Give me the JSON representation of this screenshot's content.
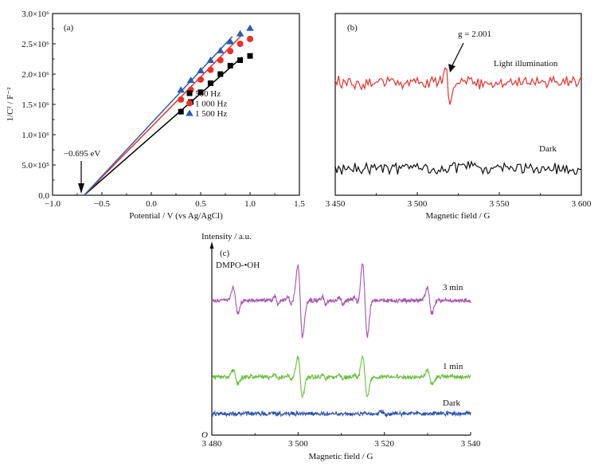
{
  "chart_data": [
    {
      "panel": "(a)",
      "type": "scatter",
      "title": "",
      "xlabel": "Potential / V (vs Ag/AgCl)",
      "ylabel": "1/C² / F⁻²",
      "xlim": [
        -1.0,
        1.5
      ],
      "ylim": [
        0,
        3000000
      ],
      "xticks": [
        -1.0,
        -0.5,
        0.0,
        0.5,
        1.0,
        1.5
      ],
      "xtick_labels": [
        "−1.0",
        "−0.5",
        "0.0",
        "0.5",
        "1.0",
        "1.5"
      ],
      "yticks": [
        0,
        500000,
        1000000,
        1500000,
        2000000,
        2500000,
        3000000
      ],
      "ytick_labels": [
        "0.0",
        "5.0×10⁵",
        "1.0×10⁶",
        "1.5×10⁶",
        "2.0×10⁶",
        "2.5×10⁶",
        "3.0×10⁶"
      ],
      "legend_position": "center-right",
      "x": [
        0.3,
        0.4,
        0.5,
        0.6,
        0.7,
        0.8,
        0.9,
        1.0
      ],
      "series": [
        {
          "name": "500 Hz",
          "marker": "square",
          "color": "#000000",
          "values": [
            1380000,
            1540000,
            1700000,
            1850000,
            2000000,
            2140000,
            2230000,
            2300000
          ],
          "fit": {
            "x0": -0.68,
            "x1": 0.92,
            "y1": 2280000
          }
        },
        {
          "name": "1 000 Hz",
          "marker": "circle",
          "color": "#e8312a",
          "values": [
            1580000,
            1740000,
            1910000,
            2070000,
            2230000,
            2380000,
            2500000,
            2580000
          ],
          "fit": {
            "x0": -0.68,
            "x1": 0.92,
            "y1": 2650000
          }
        },
        {
          "name": "1 500 Hz",
          "marker": "triangle",
          "color": "#2a5db0",
          "values": [
            1740000,
            1900000,
            2060000,
            2230000,
            2390000,
            2540000,
            2670000,
            2760000
          ],
          "fit": {
            "x0": -0.68,
            "x1": 0.82,
            "y1": 2620000
          }
        }
      ],
      "annotation": {
        "text": "−0.695 eV",
        "x": -0.695
      }
    },
    {
      "panel": "(b)",
      "type": "line",
      "xlabel": "Magnetic field / G",
      "ylabel": "",
      "xlim": [
        3450,
        3600
      ],
      "xticks": [
        3450,
        3500,
        3550,
        3600
      ],
      "xtick_labels": [
        "3 450",
        "3 500",
        "3 550",
        "3 600"
      ],
      "series": [
        {
          "name": "Light illumination",
          "color": "#e8312a",
          "baseline": 0.62,
          "features": [
            {
              "center": 3518.5,
              "g": 2.001,
              "type": "derivative"
            }
          ]
        },
        {
          "name": "Dark",
          "color": "#111111",
          "baseline": 0.15,
          "features": []
        }
      ],
      "annotation": {
        "text": "g = 2.001",
        "x": 3518
      }
    },
    {
      "panel": "(c)",
      "type": "line",
      "xlabel": "Magnetic field / G",
      "ylabel": "Intensity / a.u.",
      "origin_label": "O",
      "xlim": [
        3480,
        3540
      ],
      "xticks": [
        3480,
        3500,
        3520,
        3540
      ],
      "xtick_labels": [
        "3 480",
        "3 500",
        "3 520",
        "3 540"
      ],
      "species_label": "DMPO-•OH",
      "peak_positions": [
        3485.5,
        3500.5,
        3515.5,
        3530.5
      ],
      "peak_relative_intensity": [
        1,
        2,
        2,
        1
      ],
      "series": [
        {
          "name": "3 min",
          "color": "#a553ad",
          "amplitude": 1.0
        },
        {
          "name": "1 min",
          "color": "#6abf3c",
          "amplitude": 0.55
        },
        {
          "name": "Dark",
          "color": "#2a52a8",
          "amplitude": 0.0
        }
      ]
    }
  ]
}
